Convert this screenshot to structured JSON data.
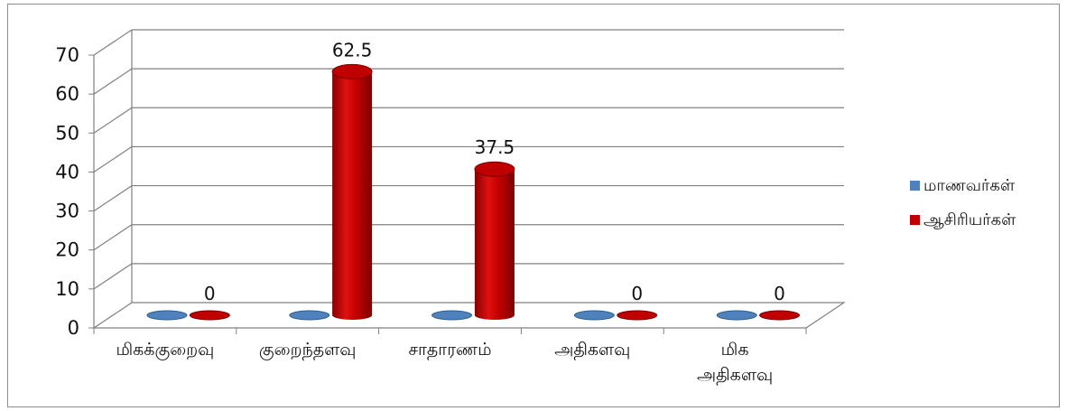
{
  "chart_data": {
    "type": "bar",
    "style": "3d-cylinder",
    "categories": [
      "மிகக்குறைவு",
      "குறைந்தளவு",
      "சாதாரணம்",
      "அதிகளவு",
      "மிக அதிகளவு"
    ],
    "category_lines": [
      [
        "மிகக்குறைவு"
      ],
      [
        "குறைந்தளவு"
      ],
      [
        "சாதாரணம்"
      ],
      [
        "அதிகளவு"
      ],
      [
        "மிக",
        "அதிகளவு"
      ]
    ],
    "series": [
      {
        "name": "மாணவர்கள்",
        "values": [
          0,
          0,
          0,
          0,
          0
        ],
        "color": "#4f81bd",
        "dark": "#2e5f8f",
        "show_labels": false
      },
      {
        "name": "ஆசிரியர்கள்",
        "values": [
          0,
          62.5,
          37.5,
          0,
          0
        ],
        "color": "#c00000",
        "dark": "#7a0000",
        "show_labels": true
      }
    ],
    "data_labels": [
      "0",
      "62.5",
      "37.5",
      "0",
      "0"
    ],
    "ylim": [
      0,
      70
    ],
    "yticks": [
      0,
      10,
      20,
      30,
      40,
      50,
      60,
      70
    ],
    "grid": true,
    "legend_position": "right"
  }
}
